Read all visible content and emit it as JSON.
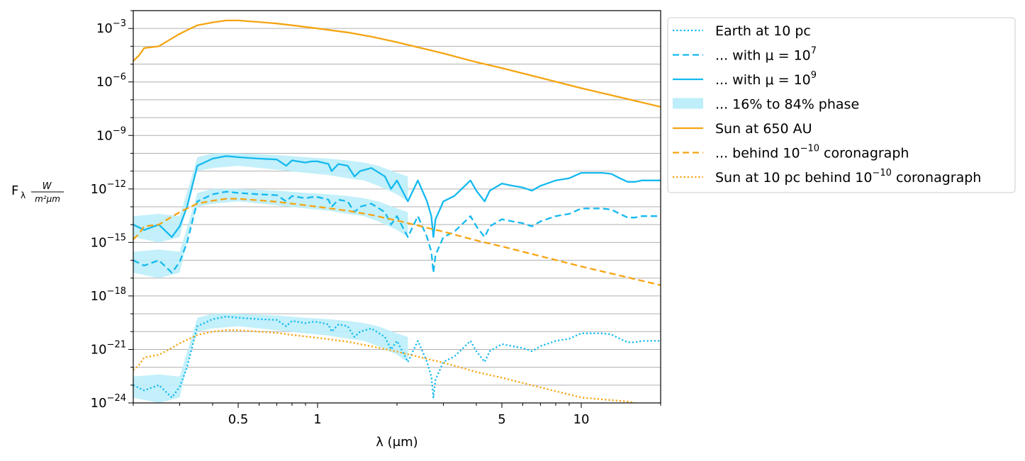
{
  "chart_data": {
    "type": "line",
    "xscale": "log",
    "yscale": "log",
    "xlim": [
      0.2,
      20
    ],
    "ylim": [
      1e-24,
      0.01
    ],
    "grid": "y-major-and-minor",
    "legend_placement": "outside-right",
    "xlabel": {
      "main": "λ (μm)"
    },
    "ylabel": {
      "main": "F",
      "sub": "λ",
      "frac_num": "W",
      "frac_den": "m²μm"
    },
    "x_ticks": [
      {
        "value": 0.5,
        "label": "0.5"
      },
      {
        "value": 1,
        "label": "1"
      },
      {
        "value": 5,
        "label": "5"
      },
      {
        "value": 10,
        "label": "10"
      }
    ],
    "y_ticks": [
      {
        "value": 0.001,
        "base": "10",
        "exp": "−3"
      },
      {
        "value": 1e-06,
        "base": "10",
        "exp": "−6"
      },
      {
        "value": 1e-09,
        "base": "10",
        "exp": "−9"
      },
      {
        "value": 1e-12,
        "base": "10",
        "exp": "−12"
      },
      {
        "value": 1e-15,
        "base": "10",
        "exp": "−15"
      },
      {
        "value": 1e-18,
        "base": "10",
        "exp": "−18"
      },
      {
        "value": 1e-21,
        "base": "10",
        "exp": "−21"
      },
      {
        "value": 1e-24,
        "base": "10",
        "exp": "−24"
      }
    ],
    "colors": {
      "earth": "#14b9ef",
      "band": "#bdeefa",
      "sun": "#f5a412"
    },
    "series": [
      {
        "key": "earth_10pc",
        "kind": "line",
        "style": "dotted",
        "color": "#14b9ef",
        "x": [
          0.2,
          0.22,
          0.25,
          0.28,
          0.3,
          0.32,
          0.35,
          0.4,
          0.45,
          0.5,
          0.6,
          0.7,
          0.76,
          0.8,
          0.9,
          0.95,
          1.0,
          1.1,
          1.13,
          1.2,
          1.3,
          1.38,
          1.45,
          1.6,
          1.8,
          1.9,
          2.0,
          2.2,
          2.4,
          2.6,
          2.7,
          2.75,
          2.8,
          3.0,
          3.3,
          3.8,
          4.0,
          4.3,
          4.5,
          5.0,
          5.5,
          6.0,
          6.5,
          7.0,
          8.0,
          9.0,
          10.0,
          11.0,
          12.0,
          13.0,
          14.0,
          15.0,
          16.0,
          17.0,
          18.0,
          19.0,
          20.0
        ],
        "y": [
          1e-23,
          5e-24,
          1e-23,
          2e-24,
          8e-24,
          1e-22,
          2e-20,
          5e-20,
          7e-20,
          6e-20,
          5e-20,
          4.5e-20,
          2e-20,
          4e-20,
          3e-20,
          3.5e-20,
          3.5e-20,
          2.5e-20,
          1e-20,
          2.5e-20,
          2e-20,
          5e-21,
          1e-20,
          1.5e-20,
          5e-21,
          1e-21,
          3e-21,
          2e-22,
          3e-21,
          2e-22,
          3e-23,
          2e-24,
          2e-23,
          2e-22,
          4e-22,
          3e-21,
          8e-22,
          2e-22,
          8e-22,
          2e-21,
          1.5e-21,
          1.2e-21,
          8e-22,
          1.5e-21,
          3e-21,
          4e-21,
          8e-21,
          8e-21,
          8e-21,
          7e-21,
          4e-21,
          2.5e-21,
          2.5e-21,
          3e-21,
          3e-21,
          3e-21,
          3e-21
        ]
      },
      {
        "key": "earth_mu7",
        "kind": "line",
        "style": "dashed",
        "color": "#14b9ef",
        "x": [
          0.2,
          0.22,
          0.25,
          0.28,
          0.3,
          0.32,
          0.35,
          0.4,
          0.45,
          0.5,
          0.6,
          0.7,
          0.76,
          0.8,
          0.9,
          0.95,
          1.0,
          1.1,
          1.13,
          1.2,
          1.3,
          1.38,
          1.45,
          1.6,
          1.8,
          1.9,
          2.0,
          2.2,
          2.4,
          2.6,
          2.7,
          2.75,
          2.8,
          3.0,
          3.3,
          3.8,
          4.0,
          4.3,
          4.5,
          5.0,
          5.5,
          6.0,
          6.5,
          7.0,
          8.0,
          9.0,
          10.0,
          11.0,
          12.0,
          13.0,
          14.0,
          15.0,
          16.0,
          17.0,
          18.0,
          19.0,
          20.0
        ],
        "y": [
          1e-16,
          5e-17,
          1e-16,
          2e-17,
          8e-17,
          1e-15,
          2e-13,
          5e-13,
          7e-13,
          6e-13,
          5e-13,
          4.5e-13,
          2e-13,
          4e-13,
          3e-13,
          3.5e-13,
          3.5e-13,
          2.5e-13,
          1e-13,
          2.5e-13,
          2e-13,
          5e-14,
          1e-13,
          1.5e-13,
          5e-14,
          1e-14,
          3e-14,
          2e-15,
          3e-14,
          2e-15,
          3e-16,
          2e-17,
          2e-16,
          2e-15,
          4e-15,
          3e-14,
          8e-15,
          2e-15,
          8e-15,
          2e-14,
          1.5e-14,
          1.2e-14,
          8e-15,
          1.5e-14,
          3e-14,
          4e-14,
          8e-14,
          8e-14,
          8e-14,
          7e-14,
          4e-14,
          2.5e-14,
          2.5e-14,
          3e-14,
          3e-14,
          3e-14,
          3e-14
        ]
      },
      {
        "key": "earth_mu9",
        "kind": "line",
        "style": "solid",
        "color": "#14b9ef",
        "x": [
          0.2,
          0.22,
          0.25,
          0.28,
          0.3,
          0.32,
          0.35,
          0.4,
          0.45,
          0.5,
          0.6,
          0.7,
          0.76,
          0.8,
          0.9,
          0.95,
          1.0,
          1.1,
          1.13,
          1.2,
          1.3,
          1.38,
          1.45,
          1.6,
          1.8,
          1.9,
          2.0,
          2.2,
          2.4,
          2.6,
          2.7,
          2.75,
          2.8,
          3.0,
          3.3,
          3.8,
          4.0,
          4.3,
          4.5,
          5.0,
          5.5,
          6.0,
          6.5,
          7.0,
          8.0,
          9.0,
          10.0,
          11.0,
          12.0,
          13.0,
          14.0,
          15.0,
          16.0,
          17.0,
          18.0,
          19.0,
          20.0
        ],
        "y": [
          1e-14,
          5e-15,
          1e-14,
          2e-15,
          8e-15,
          1e-13,
          2e-11,
          5e-11,
          7e-11,
          6e-11,
          5e-11,
          4.5e-11,
          2e-11,
          4e-11,
          3e-11,
          3.5e-11,
          3.5e-11,
          2.5e-11,
          1e-11,
          2.5e-11,
          2e-11,
          5e-12,
          1e-11,
          1.5e-11,
          5e-12,
          1e-12,
          3e-12,
          2e-13,
          3e-12,
          2e-13,
          3e-14,
          2e-15,
          2e-14,
          2e-13,
          4e-13,
          3e-12,
          8e-13,
          2e-13,
          8e-13,
          2e-12,
          1.5e-12,
          1.2e-12,
          8e-13,
          1.5e-12,
          3e-12,
          4e-12,
          8e-12,
          8e-12,
          8e-12,
          7e-12,
          4e-12,
          2.5e-12,
          2.5e-12,
          3e-12,
          3e-12,
          3e-12,
          3e-12
        ]
      },
      {
        "key": "sun_650au",
        "kind": "line",
        "style": "solid",
        "color": "#f5a412",
        "x": [
          0.2,
          0.21,
          0.22,
          0.25,
          0.27,
          0.3,
          0.32,
          0.35,
          0.4,
          0.45,
          0.5,
          0.6,
          0.7,
          0.8,
          1.0,
          1.3,
          1.6,
          2.0,
          3.0,
          4.0,
          5.0,
          7.0,
          10.0,
          15.0,
          20.0
        ],
        "y": [
          1.5e-05,
          3e-05,
          8e-05,
          0.0001,
          0.0002,
          0.0005,
          0.0008,
          0.0015,
          0.0022,
          0.0028,
          0.0028,
          0.0023,
          0.0019,
          0.0015,
          0.001,
          0.0006,
          0.00035,
          0.00017,
          4e-05,
          1.3e-05,
          6e-06,
          1.7e-06,
          4.5e-07,
          1.1e-07,
          4e-08
        ]
      },
      {
        "key": "sun_behind",
        "kind": "line",
        "style": "dashed",
        "color": "#f5a412",
        "x": [
          0.2,
          0.21,
          0.22,
          0.25,
          0.27,
          0.3,
          0.32,
          0.35,
          0.4,
          0.45,
          0.5,
          0.6,
          0.7,
          0.8,
          1.0,
          1.3,
          1.6,
          2.0,
          3.0,
          4.0,
          5.0,
          7.0,
          10.0,
          15.0,
          20.0
        ],
        "y": [
          1.5e-15,
          3e-15,
          8e-15,
          1e-14,
          2e-14,
          5e-14,
          8e-14,
          1.5e-13,
          2.2e-13,
          2.8e-13,
          2.8e-13,
          2.3e-13,
          1.9e-13,
          1.5e-13,
          1e-13,
          6e-14,
          3.5e-14,
          1.7e-14,
          4e-15,
          1.3e-15,
          6e-16,
          1.7e-16,
          4.5e-17,
          1.1e-17,
          4e-18
        ]
      },
      {
        "key": "sun_10pc",
        "kind": "line",
        "style": "dotted",
        "color": "#f5a412",
        "x": [
          0.2,
          0.21,
          0.22,
          0.25,
          0.27,
          0.3,
          0.32,
          0.35,
          0.4,
          0.45,
          0.5,
          0.6,
          0.7,
          0.8,
          1.0,
          1.3,
          1.6,
          2.0,
          3.0,
          4.0,
          5.0,
          7.0,
          10.0,
          15.0,
          16.0
        ],
        "y": [
          7e-23,
          1.3e-22,
          3.5e-22,
          5e-22,
          9e-22,
          2.2e-21,
          3.5e-21,
          6.5e-21,
          1e-20,
          1.2e-20,
          1.2e-20,
          1e-20,
          8.5e-21,
          6.5e-21,
          4.5e-21,
          2.7e-21,
          1.5e-21,
          7.5e-22,
          1.8e-22,
          5.5e-23,
          2.6e-23,
          7.5e-24,
          2e-24,
          1.2e-24,
          1e-24
        ]
      },
      {
        "key": "phase_band",
        "kind": "band",
        "color": "#bdeefa",
        "x": [
          0.2,
          0.25,
          0.3,
          0.33,
          0.35,
          0.4,
          0.5,
          0.7,
          0.9,
          1.1,
          1.3,
          1.5,
          1.7,
          2.0,
          2.2
        ],
        "low": [
          2e-15,
          1e-15,
          2e-15,
          8e-13,
          1e-11,
          1.5e-11,
          2e-11,
          1.2e-11,
          8e-12,
          6e-12,
          4e-12,
          3e-12,
          1.5e-12,
          5e-13,
          2e-13
        ],
        "high": [
          3e-14,
          4e-14,
          3e-14,
          3e-12,
          6e-11,
          1e-10,
          1e-10,
          8e-11,
          6e-11,
          5e-11,
          4e-11,
          3e-11,
          2e-11,
          8e-12,
          5e-12
        ]
      },
      {
        "key": "phase_band_mu7",
        "kind": "band",
        "color": "#bdeefa",
        "x": [
          0.2,
          0.25,
          0.3,
          0.33,
          0.35,
          0.4,
          0.5,
          0.7,
          0.9,
          1.1,
          1.3,
          1.5,
          1.7,
          2.0,
          2.2
        ],
        "low": [
          2e-17,
          1e-17,
          2e-17,
          8e-15,
          1e-13,
          1.5e-13,
          2e-13,
          1.2e-13,
          8e-14,
          6e-14,
          4e-14,
          3e-14,
          1.5e-14,
          5e-15,
          2e-15
        ],
        "high": [
          3e-16,
          4e-16,
          3e-16,
          3e-14,
          6e-13,
          1e-12,
          1e-12,
          8e-13,
          6e-13,
          5e-13,
          4e-13,
          3e-13,
          2e-13,
          8e-14,
          5e-14
        ]
      },
      {
        "key": "phase_band_10pc",
        "kind": "band",
        "color": "#bdeefa",
        "x": [
          0.2,
          0.25,
          0.3,
          0.33,
          0.35,
          0.4,
          0.5,
          0.7,
          0.9,
          1.1,
          1.3,
          1.5,
          1.7,
          2.0,
          2.2
        ],
        "low": [
          2e-24,
          1e-24,
          2e-24,
          8e-22,
          1e-20,
          1.5e-20,
          2e-20,
          1.2e-20,
          8e-21,
          6e-21,
          4e-21,
          3e-21,
          1.5e-21,
          5e-22,
          2e-22
        ],
        "high": [
          3e-23,
          4e-23,
          3e-23,
          3e-21,
          6e-20,
          1e-19,
          1e-19,
          8e-20,
          6e-20,
          5e-20,
          4e-20,
          3e-20,
          2e-20,
          8e-21,
          5e-21
        ]
      }
    ],
    "legend": [
      {
        "key": "earth_10pc",
        "kind": "line",
        "style": "dotted",
        "color": "#14b9ef",
        "label": "Earth at 10 pc"
      },
      {
        "key": "earth_mu7",
        "kind": "line",
        "style": "dashed",
        "color": "#14b9ef",
        "label": "... with μ = 10",
        "sup": "7"
      },
      {
        "key": "earth_mu9",
        "kind": "line",
        "style": "solid",
        "color": "#14b9ef",
        "label": "... with μ = 10",
        "sup": "9"
      },
      {
        "key": "phase_band",
        "kind": "band",
        "color": "#bdeefa",
        "label": "... 16% to 84% phase"
      },
      {
        "key": "sun_650au",
        "kind": "line",
        "style": "solid",
        "color": "#f5a412",
        "label": "Sun at 650 AU"
      },
      {
        "key": "sun_behind",
        "kind": "line",
        "style": "dashed",
        "color": "#f5a412",
        "label": "... behind 10",
        "sup": "−10",
        "after": " coronagraph"
      },
      {
        "key": "sun_10pc",
        "kind": "line",
        "style": "dotted",
        "color": "#f5a412",
        "label": "Sun at 10 pc behind 10",
        "sup": "−10",
        "after": " coronagraph"
      }
    ]
  }
}
